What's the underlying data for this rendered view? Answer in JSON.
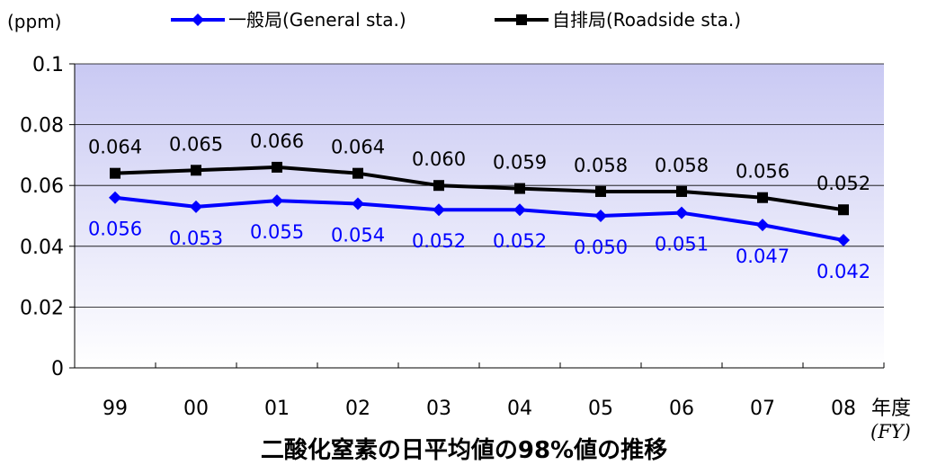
{
  "unit_label": "(ppm)",
  "fy_label": "(FY)",
  "title": "二酸化窒素の日平均値の98%値の推移",
  "colors": {
    "general": "#0000ff",
    "roadside": "#000000",
    "plot_top": "#c9c9f3",
    "plot_bottom": "#ffffff"
  },
  "chart_data": {
    "type": "line",
    "categories": [
      "99",
      "00",
      "01",
      "02",
      "03",
      "04",
      "05",
      "06",
      "07",
      "08"
    ],
    "series": [
      {
        "name": "一般局(General sta.)",
        "marker": "diamond",
        "values": [
          0.056,
          0.053,
          0.055,
          0.054,
          0.052,
          0.052,
          0.05,
          0.051,
          0.047,
          0.042
        ],
        "labels": [
          "0.056",
          "0.053",
          "0.055",
          "0.054",
          "0.052",
          "0.052",
          "0.050",
          "0.051",
          "0.047",
          "0.042"
        ]
      },
      {
        "name": "自排局(Roadside sta.)",
        "marker": "square",
        "values": [
          0.064,
          0.065,
          0.066,
          0.064,
          0.06,
          0.059,
          0.058,
          0.058,
          0.056,
          0.052
        ],
        "labels": [
          "0.064",
          "0.065",
          "0.066",
          "0.064",
          "0.060",
          "0.059",
          "0.058",
          "0.058",
          "0.056",
          "0.052"
        ]
      }
    ],
    "xlabel": "年度",
    "ylabel": "(ppm)",
    "ylim": [
      0,
      0.1
    ],
    "yticks": [
      0,
      0.02,
      0.04,
      0.06,
      0.08,
      0.1
    ],
    "ytick_labels": [
      "0",
      "0.02",
      "0.04",
      "0.06",
      "0.08",
      "0.1"
    ],
    "grid": true,
    "legend": "top"
  }
}
